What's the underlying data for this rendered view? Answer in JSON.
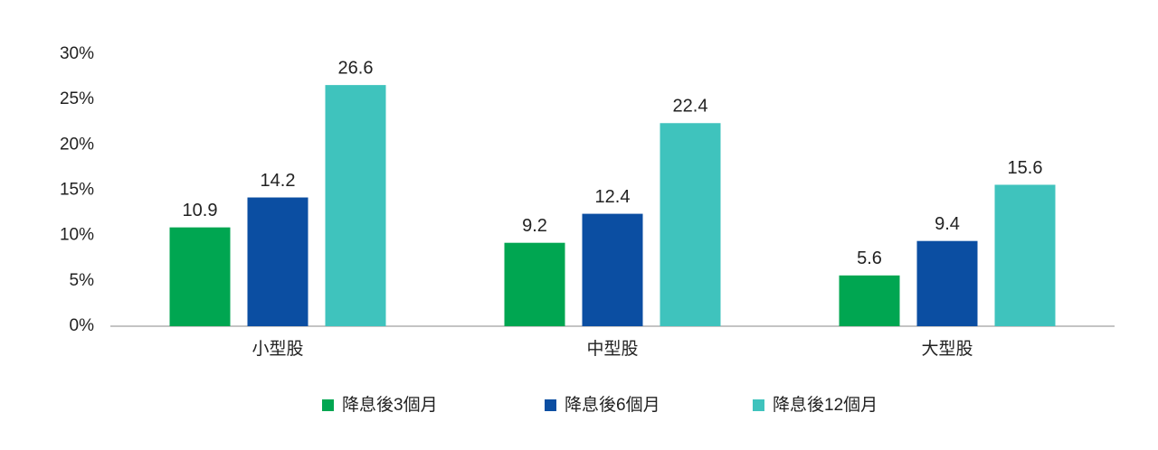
{
  "chart_data": {
    "type": "bar",
    "categories": [
      "小型股",
      "中型股",
      "大型股"
    ],
    "series": [
      {
        "name": "降息後3個月",
        "color": "#00a651",
        "values": [
          10.9,
          9.2,
          5.6
        ]
      },
      {
        "name": "降息後6個月",
        "color": "#0b4ea2",
        "values": [
          14.2,
          12.4,
          9.4
        ]
      },
      {
        "name": "降息後12個月",
        "color": "#3fc3bd",
        "values": [
          26.6,
          22.4,
          15.6
        ]
      }
    ],
    "ylim": [
      0,
      30
    ],
    "yticks": [
      {
        "value": 0,
        "label": "0%"
      },
      {
        "value": 5,
        "label": "5%"
      },
      {
        "value": 10,
        "label": "10%"
      },
      {
        "value": 15,
        "label": "15%"
      },
      {
        "value": 20,
        "label": "20%"
      },
      {
        "value": 25,
        "label": "25%"
      },
      {
        "value": 30,
        "label": "30%"
      }
    ],
    "grid": false,
    "legend": "bottom"
  }
}
